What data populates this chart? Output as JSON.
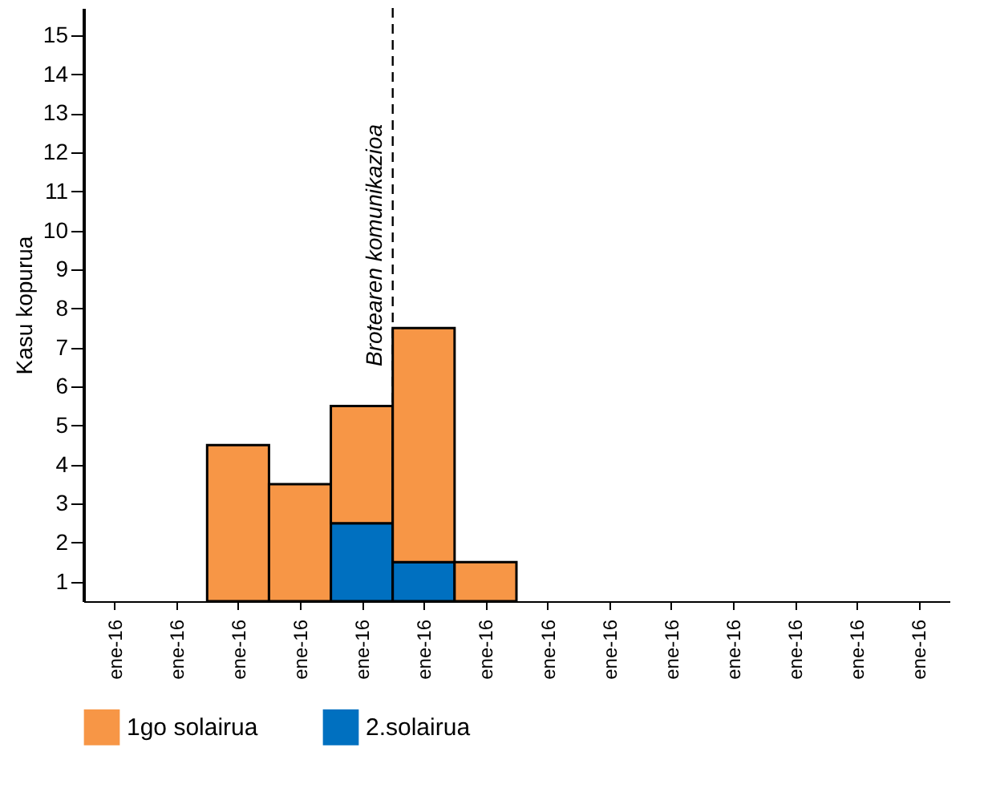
{
  "chart_data": {
    "type": "bar",
    "stacked": true,
    "ylabel": "Kasu kopurua",
    "categories": [
      "ene-16",
      "ene-16",
      "ene-16",
      "ene-16",
      "ene-16",
      "ene-16",
      "ene-16",
      "ene-16",
      "ene-16",
      "ene-16",
      "ene-16",
      "ene-16",
      "ene-16",
      "ene-16"
    ],
    "series": [
      {
        "name": "2.solairua",
        "color": "#0070c0",
        "values": [
          0,
          0,
          0,
          0,
          2,
          1,
          0,
          0,
          0,
          0,
          0,
          0,
          0,
          0
        ]
      },
      {
        "name": "1go solairua",
        "color": "#f79646",
        "values": [
          0,
          0,
          4,
          3,
          3,
          6,
          1,
          0,
          0,
          0,
          0,
          0,
          0,
          0
        ]
      }
    ],
    "ylim": [
      0,
      15.2
    ],
    "yticks": [
      {
        "value": 0.5,
        "label": "1"
      },
      {
        "value": 1.5,
        "label": "2"
      },
      {
        "value": 2.5,
        "label": "3"
      },
      {
        "value": 3.5,
        "label": "4"
      },
      {
        "value": 4.5,
        "label": "5"
      },
      {
        "value": 5.5,
        "label": "6"
      },
      {
        "value": 6.5,
        "label": "7"
      },
      {
        "value": 7.5,
        "label": "8"
      },
      {
        "value": 8.5,
        "label": "9"
      },
      {
        "value": 9.5,
        "label": "10"
      },
      {
        "value": 10.5,
        "label": "11"
      },
      {
        "value": 11.5,
        "label": "12"
      },
      {
        "value": 12.5,
        "label": "13"
      },
      {
        "value": 13.5,
        "label": "14"
      },
      {
        "value": 14.5,
        "label": "15"
      }
    ],
    "annotations": [
      "Brotearen komunikazioa"
    ],
    "legend": "bottom",
    "grid": false
  }
}
